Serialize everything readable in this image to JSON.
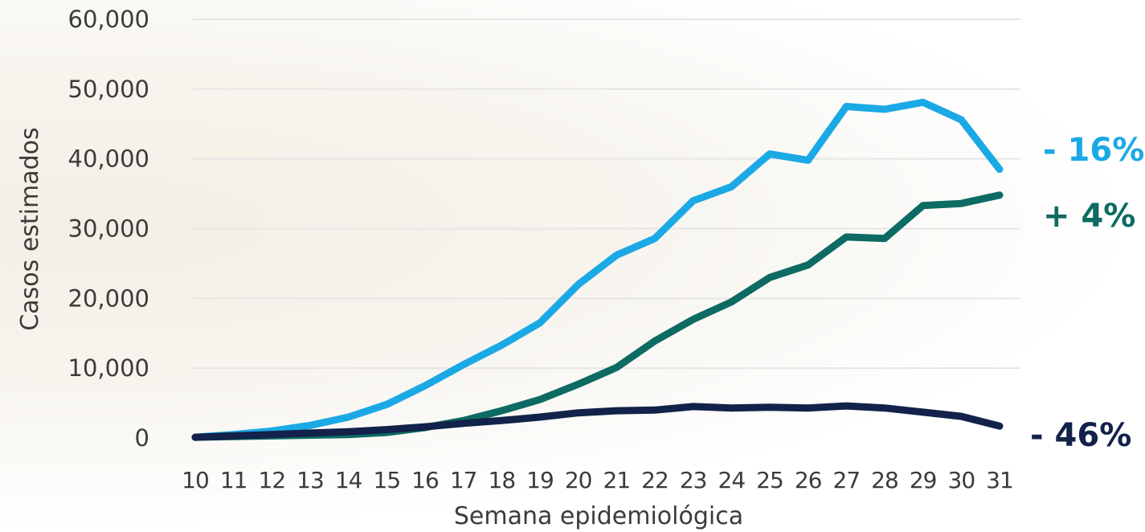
{
  "chart_data": {
    "type": "line",
    "title": "",
    "xlabel": "Semana epidemiológica",
    "ylabel": "Casos estimados",
    "x": [
      10,
      11,
      12,
      13,
      14,
      15,
      16,
      17,
      18,
      19,
      20,
      21,
      22,
      23,
      24,
      25,
      26,
      27,
      28,
      29,
      30,
      31
    ],
    "x_tick_labels": [
      "10",
      "11",
      "12",
      "13",
      "14",
      "15",
      "16",
      "17",
      "18",
      "19",
      "20",
      "21",
      "22",
      "23",
      "24",
      "25",
      "26",
      "27",
      "28",
      "29",
      "30",
      "31"
    ],
    "ylim": [
      0,
      60000
    ],
    "y_ticks": [
      0,
      10000,
      20000,
      30000,
      40000,
      50000,
      60000
    ],
    "y_tick_labels": [
      "0",
      "10,000",
      "20,000",
      "30,000",
      "40,000",
      "50,000",
      "60,000"
    ],
    "grid": true,
    "series": [
      {
        "color": "#1ba9e6",
        "end_label": "- 16%",
        "values": [
          100,
          500,
          1000,
          1800,
          3000,
          4800,
          7500,
          10500,
          13300,
          16500,
          22000,
          26200,
          28600,
          34000,
          36000,
          40700,
          39800,
          47500,
          47100,
          48100,
          45600,
          38500
        ]
      },
      {
        "color": "#0d6b63",
        "end_label": "+ 4%",
        "values": [
          100,
          200,
          300,
          400,
          500,
          800,
          1500,
          2500,
          3900,
          5500,
          7700,
          10100,
          13900,
          17000,
          19500,
          23000,
          24800,
          28800,
          28600,
          33300,
          33600,
          34800
        ]
      },
      {
        "color": "#12224a",
        "end_label": "- 46%",
        "values": [
          100,
          300,
          500,
          700,
          900,
          1200,
          1600,
          2100,
          2500,
          3000,
          3600,
          3900,
          4000,
          4500,
          4300,
          4400,
          4300,
          4600,
          4300,
          3700,
          3100,
          1700
        ]
      }
    ]
  }
}
